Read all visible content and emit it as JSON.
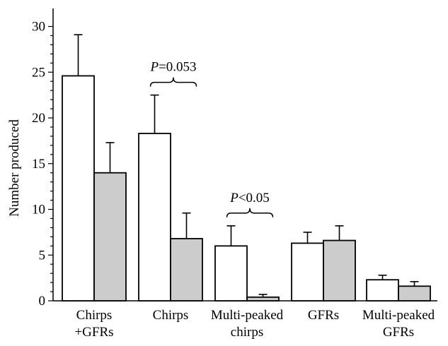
{
  "chart_data": {
    "type": "bar",
    "ylabel": "Number produced",
    "ylim": [
      0,
      32
    ],
    "yticks": [
      0,
      5,
      10,
      15,
      20,
      25,
      30
    ],
    "grid": false,
    "legend": "none",
    "categories": [
      [
        "Chirps",
        "+GFRs"
      ],
      [
        "Chirps"
      ],
      [
        "Multi-peaked",
        "chirps"
      ],
      [
        "GFRs"
      ],
      [
        "Multi-peaked",
        "GFRs"
      ]
    ],
    "series": [
      {
        "color": "#ffffff",
        "values": [
          24.6,
          18.3,
          6.0,
          6.3,
          2.3
        ],
        "errors": [
          4.5,
          4.2,
          2.2,
          1.2,
          0.5
        ]
      },
      {
        "color": "#cccccc",
        "values": [
          14.0,
          6.8,
          0.4,
          6.6,
          1.6
        ],
        "errors": [
          3.3,
          2.8,
          0.3,
          1.6,
          0.5
        ]
      }
    ],
    "annotations": [
      {
        "italic": "P",
        "text": "=0.053",
        "category": 1
      },
      {
        "italic": "P",
        "text": "<0.05",
        "category": 2
      }
    ]
  }
}
